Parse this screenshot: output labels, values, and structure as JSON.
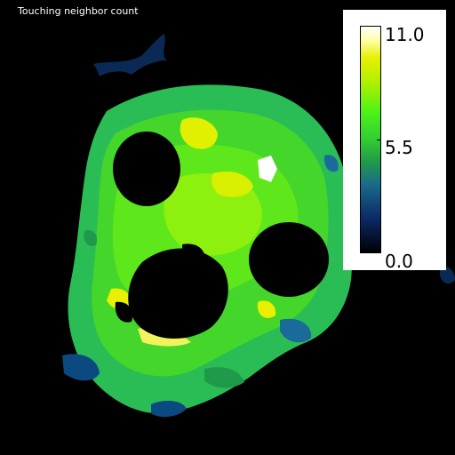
{
  "title": "Touching neighbor count",
  "colorbar": {
    "max_label": "11.0",
    "mid_label": "5.5",
    "min_label": "0.0",
    "range": [
      0.0,
      11.0
    ],
    "colors": [
      "#000000",
      "#0a2a66",
      "#1a6a8a",
      "#1f9a4a",
      "#33cc33",
      "#4cf218",
      "#a8f000",
      "#e8f000",
      "#ffffaa",
      "#ffffff"
    ]
  },
  "background_color": "#000000"
}
